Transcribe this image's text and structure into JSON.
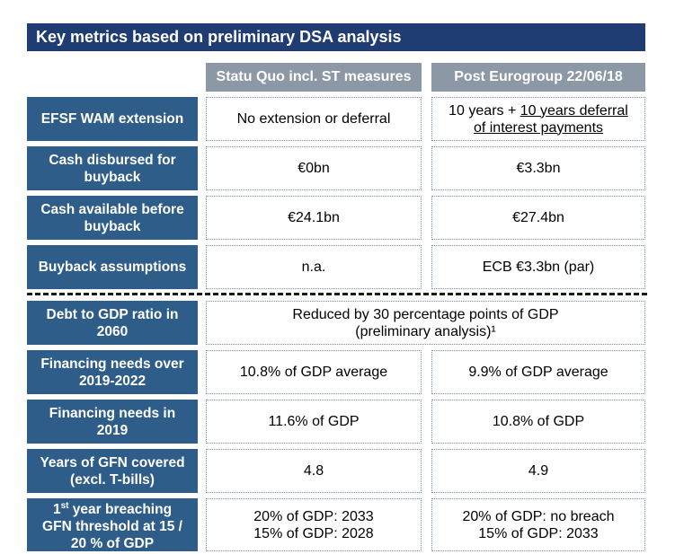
{
  "title": "Key metrics based on preliminary DSA analysis",
  "columns": {
    "status_quo": "Statu Quo incl. ST measures",
    "post_eurogroup": "Post Eurogroup 22/06/18"
  },
  "rows": {
    "wam": {
      "label": "EFSF WAM extension",
      "status_quo": "No extension or deferral",
      "post_prefix": "10 years + ",
      "post_underline_1": "10 years deferral",
      "post_underline_2": "of interest payments"
    },
    "cash_disbursed": {
      "label_1": "Cash disbursed for",
      "label_2": "buyback",
      "status_quo": "€0bn",
      "post_eurogroup": "€3.3bn"
    },
    "cash_available": {
      "label_1": "Cash available before",
      "label_2": "buyback",
      "status_quo": "€24.1bn",
      "post_eurogroup": "€27.4bn"
    },
    "buyback_assumptions": {
      "label": "Buyback assumptions",
      "status_quo": "n.a.",
      "post_eurogroup": "ECB €3.3bn (par)"
    },
    "debt_to_gdp": {
      "label_1": "Debt to GDP ratio in",
      "label_2": "2060",
      "value_1": "Reduced by 30 percentage points of GDP",
      "value_2": "(preliminary analysis)¹"
    },
    "financing_needs_avg": {
      "label_1": "Financing needs over",
      "label_2": "2019-2022",
      "status_quo": "10.8% of GDP average",
      "post_eurogroup": "9.9% of GDP average"
    },
    "financing_needs_2019": {
      "label_1": "Financing needs in",
      "label_2": "2019",
      "status_quo": "11.6% of GDP",
      "post_eurogroup": "10.8% of GDP"
    },
    "years_gfn": {
      "label_1": "Years of GFN covered",
      "label_2": "(excl. T-bills)",
      "status_quo": "4.8",
      "post_eurogroup": "4.9"
    },
    "first_year_breach": {
      "label_1_num": "1",
      "label_1_sup": "st",
      "label_1_rest": " year breaching",
      "label_2": "GFN threshold at 15 /",
      "label_3": "20 % of GDP",
      "status_quo_1": "20% of GDP: 2033",
      "status_quo_2": "15% of GDP: 2028",
      "post_1": "20% of GDP: no breach",
      "post_2": "15% of GDP: 2033"
    }
  }
}
